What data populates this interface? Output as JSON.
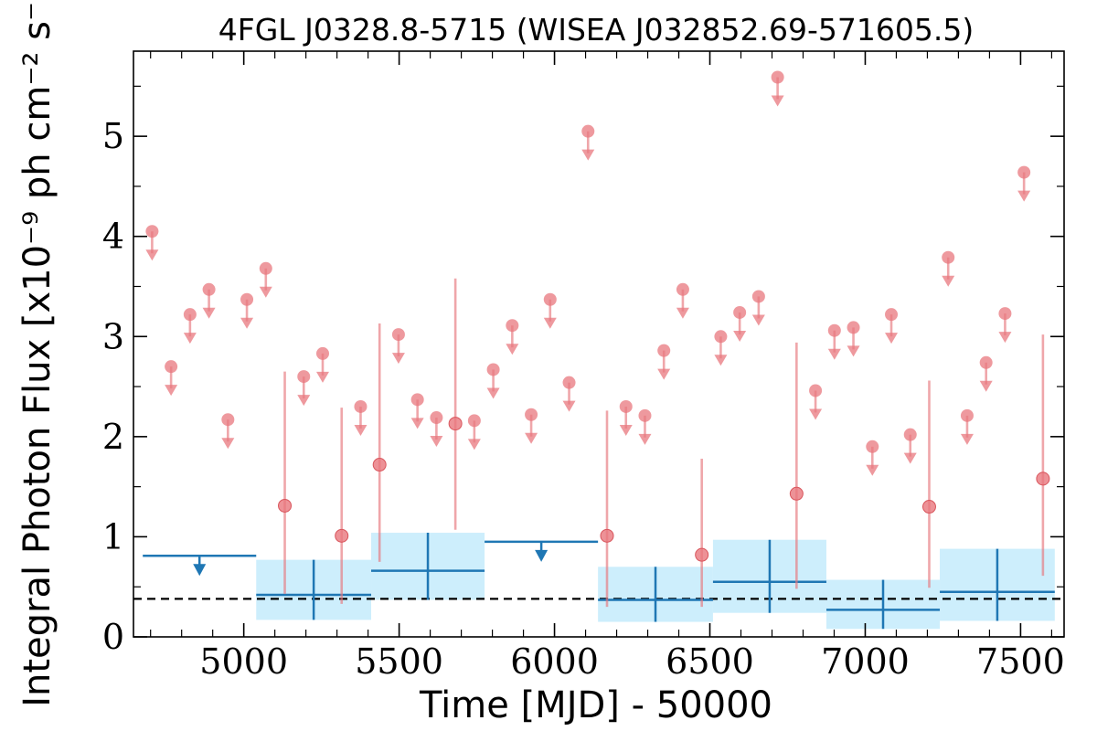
{
  "chart_data": {
    "type": "scatter",
    "title": "4FGL J0328.8-5715 (WISEA J032852.69-571605.5)",
    "xlabel": "Time [MJD] - 50000",
    "ylabel": "Integral Photon Flux [x10⁻⁹ ph cm⁻² s⁻¹]",
    "xlim": [
      4645,
      7640
    ],
    "ylim": [
      0,
      5.85
    ],
    "xticks": [
      5000,
      5500,
      6000,
      6500,
      7000,
      7500
    ],
    "yticks": [
      0,
      1,
      2,
      3,
      4,
      5
    ],
    "xtick_labels": [
      "5000",
      "5500",
      "6000",
      "6500",
      "7000",
      "7500"
    ],
    "ytick_labels": [
      "0",
      "1",
      "2",
      "3",
      "4",
      "5"
    ],
    "mean_flux": 0.38,
    "colors": {
      "short_bins": "#e8777d",
      "long_bins": "#1f77b4",
      "long_bins_fill": "#cdeefc"
    },
    "short_bins": {
      "upper_limits": [
        {
          "x": 4705,
          "y": 4.05
        },
        {
          "x": 4766,
          "y": 2.7
        },
        {
          "x": 4827,
          "y": 3.22
        },
        {
          "x": 4888,
          "y": 3.47
        },
        {
          "x": 4949,
          "y": 2.17
        },
        {
          "x": 5010,
          "y": 3.37
        },
        {
          "x": 5071,
          "y": 3.68
        },
        {
          "x": 5193,
          "y": 2.6
        },
        {
          "x": 5254,
          "y": 2.83
        },
        {
          "x": 5376,
          "y": 2.3
        },
        {
          "x": 5498,
          "y": 3.02
        },
        {
          "x": 5559,
          "y": 2.37
        },
        {
          "x": 5620,
          "y": 2.19
        },
        {
          "x": 5742,
          "y": 2.16
        },
        {
          "x": 5803,
          "y": 2.67
        },
        {
          "x": 5864,
          "y": 3.11
        },
        {
          "x": 5925,
          "y": 2.22
        },
        {
          "x": 5986,
          "y": 3.37
        },
        {
          "x": 6047,
          "y": 2.54
        },
        {
          "x": 6108,
          "y": 5.05
        },
        {
          "x": 6230,
          "y": 2.3
        },
        {
          "x": 6291,
          "y": 2.21
        },
        {
          "x": 6352,
          "y": 2.86
        },
        {
          "x": 6413,
          "y": 3.47
        },
        {
          "x": 6535,
          "y": 3.0
        },
        {
          "x": 6596,
          "y": 3.24
        },
        {
          "x": 6657,
          "y": 3.4
        },
        {
          "x": 6718,
          "y": 5.59
        },
        {
          "x": 6840,
          "y": 2.46
        },
        {
          "x": 6901,
          "y": 3.06
        },
        {
          "x": 6962,
          "y": 3.09
        },
        {
          "x": 7023,
          "y": 1.9
        },
        {
          "x": 7084,
          "y": 3.22
        },
        {
          "x": 7145,
          "y": 2.02
        },
        {
          "x": 7267,
          "y": 3.79
        },
        {
          "x": 7328,
          "y": 2.21
        },
        {
          "x": 7389,
          "y": 2.74
        },
        {
          "x": 7450,
          "y": 3.23
        },
        {
          "x": 7511,
          "y": 4.64
        }
      ],
      "detections": [
        {
          "x": 5132,
          "y": 1.31,
          "lo": 0.43,
          "hi": 2.65
        },
        {
          "x": 5315,
          "y": 1.01,
          "lo": 0.33,
          "hi": 2.29
        },
        {
          "x": 5437,
          "y": 1.72,
          "lo": 0.75,
          "hi": 3.13
        },
        {
          "x": 5681,
          "y": 2.13,
          "lo": 1.07,
          "hi": 3.58
        },
        {
          "x": 6169,
          "y": 1.01,
          "lo": 0.3,
          "hi": 2.26
        },
        {
          "x": 6474,
          "y": 0.82,
          "lo": 0.3,
          "hi": 1.78
        },
        {
          "x": 6779,
          "y": 1.43,
          "lo": 0.48,
          "hi": 2.94
        },
        {
          "x": 7206,
          "y": 1.3,
          "lo": 0.49,
          "hi": 2.56
        },
        {
          "x": 7572,
          "y": 1.58,
          "lo": 0.61,
          "hi": 3.02
        }
      ]
    },
    "long_bins": {
      "upper_limits": [
        {
          "x_start": 4675,
          "x_end": 5040,
          "y": 0.81
        },
        {
          "x_start": 5775,
          "x_end": 6140,
          "y": 0.95
        }
      ],
      "detections": [
        {
          "x_start": 5040,
          "x_end": 5410,
          "y": 0.42,
          "lo": 0.17,
          "hi": 0.77
        },
        {
          "x_start": 5410,
          "x_end": 5775,
          "y": 0.66,
          "lo": 0.37,
          "hi": 1.04
        },
        {
          "x_start": 6140,
          "x_end": 6510,
          "y": 0.37,
          "lo": 0.15,
          "hi": 0.7
        },
        {
          "x_start": 6510,
          "x_end": 6875,
          "y": 0.55,
          "lo": 0.24,
          "hi": 0.97
        },
        {
          "x_start": 6875,
          "x_end": 7240,
          "y": 0.27,
          "lo": 0.08,
          "hi": 0.57
        },
        {
          "x_start": 7240,
          "x_end": 7610,
          "y": 0.45,
          "lo": 0.16,
          "hi": 0.88
        }
      ]
    }
  }
}
